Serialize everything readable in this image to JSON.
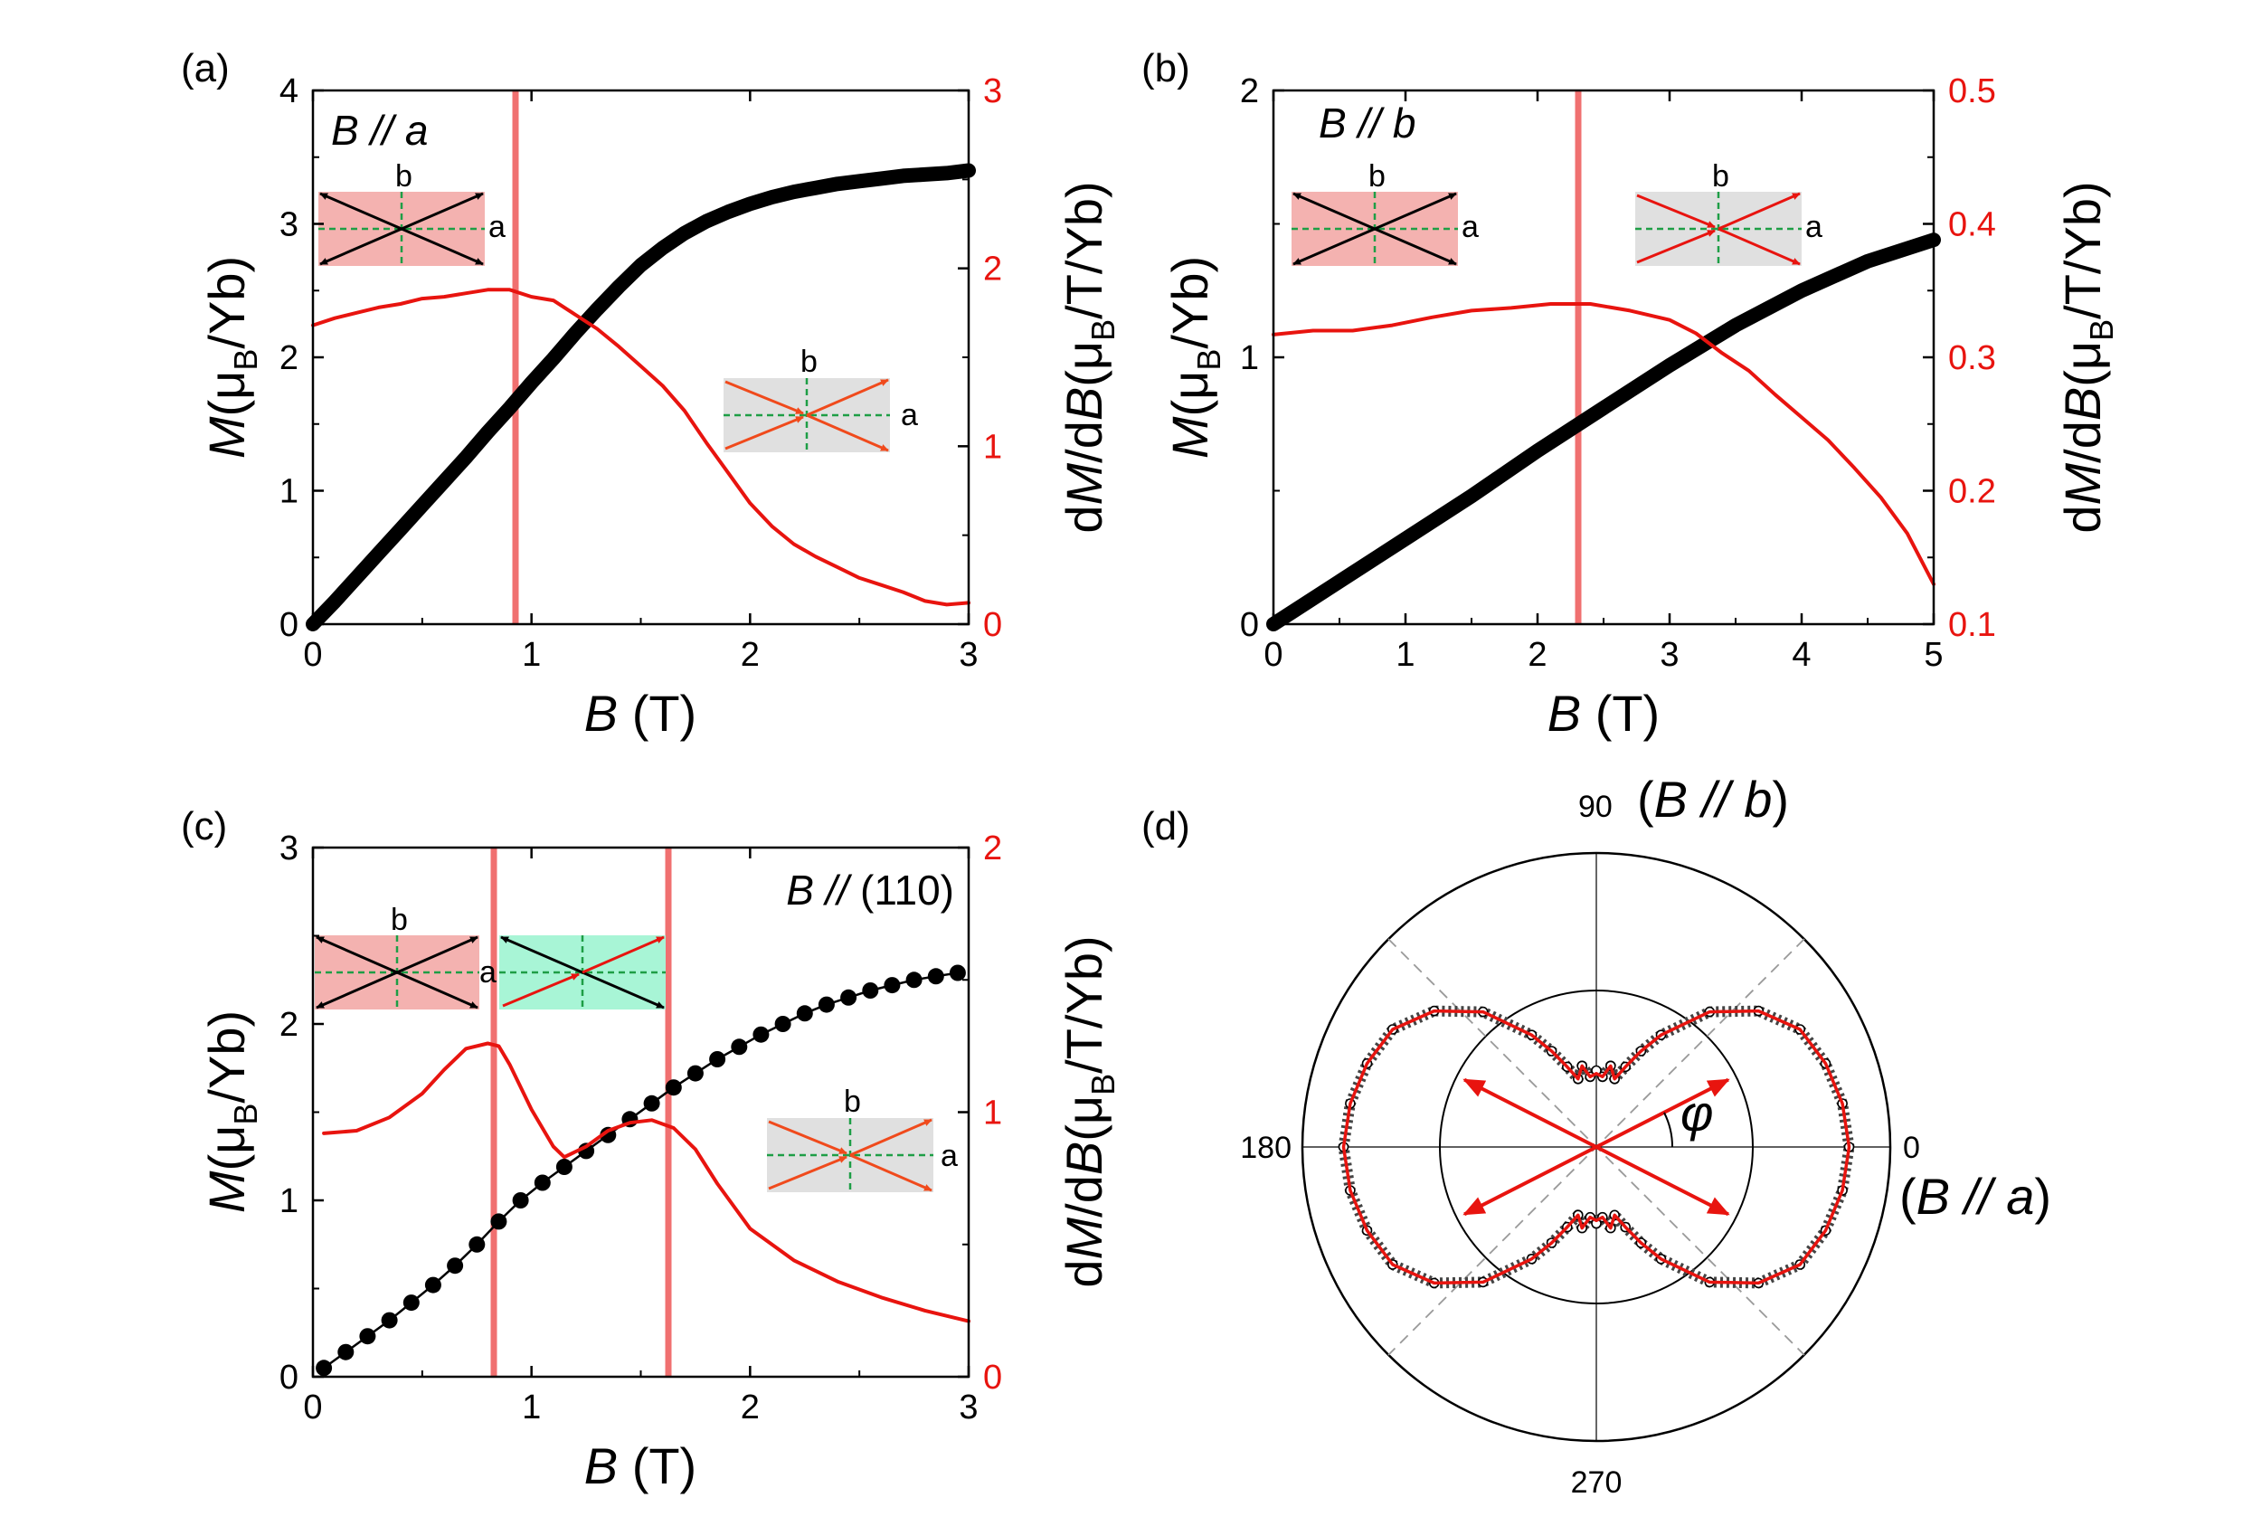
{
  "colors": {
    "black": "#000000",
    "red": "#e8140f",
    "marker_line": "#f07070",
    "inset_pink": "#f4b2b0",
    "inset_grey": "#e0e0e0",
    "inset_green": "#a8f5d6",
    "inset_dash": "#1e9e46",
    "orange_arrow": "#f04a1c"
  },
  "chart_data": [
    {
      "panel_label": "(a)",
      "type": "line",
      "condition": {
        "prefix": "B",
        "sep": " // ",
        "axis": "a"
      },
      "xlabel": {
        "symbol": "B",
        "unit": "(T)"
      },
      "ylabel_left": {
        "symbol": "M",
        "unit_open": "(μ",
        "unit_sub": "B",
        "unit_close": "/Yb)"
      },
      "ylabel_right": {
        "prefix": "d",
        "symbol": "M",
        "mid": "/d",
        "symbol2": "B",
        "unit_open": "(μ",
        "unit_sub": "B",
        "unit_close": "/T/Yb)"
      },
      "xlim": [
        0,
        3
      ],
      "ylim_left": [
        0,
        4
      ],
      "ylim_right": [
        0,
        3
      ],
      "xticks": [
        "0",
        "1",
        "2",
        "3"
      ],
      "yticks_left": [
        "0",
        "1",
        "2",
        "3",
        "4"
      ],
      "yticks_right": [
        "0",
        "1",
        "2",
        "3"
      ],
      "marker_x": [
        0.92
      ],
      "inset_labels": {
        "b": "b",
        "a": "a"
      },
      "series": [
        {
          "name": "M",
          "axis": "left",
          "style": "thick",
          "x": [
            0,
            0.1,
            0.2,
            0.3,
            0.4,
            0.5,
            0.6,
            0.7,
            0.8,
            0.9,
            1.0,
            1.1,
            1.2,
            1.3,
            1.4,
            1.5,
            1.6,
            1.7,
            1.8,
            1.9,
            2.0,
            2.1,
            2.2,
            2.3,
            2.4,
            2.5,
            2.6,
            2.7,
            2.8,
            2.9,
            3.0
          ],
          "y": [
            0,
            0.17,
            0.35,
            0.53,
            0.71,
            0.89,
            1.07,
            1.25,
            1.44,
            1.62,
            1.81,
            1.99,
            2.18,
            2.36,
            2.53,
            2.69,
            2.82,
            2.93,
            3.02,
            3.09,
            3.15,
            3.2,
            3.24,
            3.27,
            3.3,
            3.32,
            3.34,
            3.36,
            3.37,
            3.38,
            3.4
          ]
        },
        {
          "name": "dM/dB",
          "axis": "right",
          "style": "line",
          "x": [
            0,
            0.1,
            0.2,
            0.3,
            0.4,
            0.5,
            0.6,
            0.7,
            0.8,
            0.9,
            1.0,
            1.1,
            1.2,
            1.3,
            1.4,
            1.5,
            1.6,
            1.7,
            1.8,
            1.9,
            2.0,
            2.1,
            2.2,
            2.3,
            2.4,
            2.5,
            2.6,
            2.7,
            2.8,
            2.9,
            3.0
          ],
          "y": [
            1.68,
            1.72,
            1.75,
            1.78,
            1.8,
            1.83,
            1.84,
            1.86,
            1.88,
            1.88,
            1.84,
            1.82,
            1.74,
            1.66,
            1.56,
            1.45,
            1.34,
            1.2,
            1.02,
            0.85,
            0.68,
            0.55,
            0.45,
            0.38,
            0.32,
            0.26,
            0.22,
            0.18,
            0.13,
            0.11,
            0.12
          ]
        }
      ]
    },
    {
      "panel_label": "(b)",
      "type": "line",
      "condition": {
        "prefix": "B",
        "sep": " // ",
        "axis": "b"
      },
      "xlabel": {
        "symbol": "B",
        "unit": "(T)"
      },
      "ylabel_left": {
        "symbol": "M",
        "unit_open": "(μ",
        "unit_sub": "B",
        "unit_close": "/Yb)"
      },
      "ylabel_right": {
        "prefix": "d",
        "symbol": "M",
        "mid": "/d",
        "symbol2": "B",
        "unit_open": "(μ",
        "unit_sub": "B",
        "unit_close": "/T/Yb)"
      },
      "xlim": [
        0,
        5
      ],
      "ylim_left": [
        0,
        2
      ],
      "ylim_right": [
        0.1,
        0.5
      ],
      "xticks": [
        "0",
        "1",
        "2",
        "3",
        "4",
        "5"
      ],
      "yticks_left": [
        "0",
        "1",
        "2"
      ],
      "yticks_right": [
        "0.1",
        "0.2",
        "0.3",
        "0.4",
        "0.5"
      ],
      "marker_x": [
        2.27
      ],
      "inset_labels": {
        "b": "b",
        "a": "a"
      },
      "series": [
        {
          "name": "M",
          "axis": "left",
          "style": "thick",
          "x": [
            0,
            0.5,
            1.0,
            1.5,
            2.0,
            2.5,
            3.0,
            3.5,
            4.0,
            4.5,
            5.0
          ],
          "y": [
            0,
            0.16,
            0.32,
            0.48,
            0.65,
            0.81,
            0.97,
            1.12,
            1.25,
            1.36,
            1.44
          ]
        },
        {
          "name": "dM/dB",
          "axis": "right",
          "style": "line",
          "x": [
            0,
            0.3,
            0.6,
            0.9,
            1.2,
            1.5,
            1.8,
            2.1,
            2.4,
            2.7,
            3.0,
            3.2,
            3.4,
            3.6,
            3.8,
            4.0,
            4.2,
            4.4,
            4.6,
            4.8,
            5.0
          ],
          "y": [
            0.317,
            0.32,
            0.32,
            0.324,
            0.33,
            0.335,
            0.337,
            0.34,
            0.34,
            0.335,
            0.328,
            0.318,
            0.303,
            0.29,
            0.272,
            0.255,
            0.238,
            0.217,
            0.195,
            0.168,
            0.13
          ]
        }
      ]
    },
    {
      "panel_label": "(c)",
      "type": "line",
      "condition": {
        "prefix": "B",
        "sep": " // ",
        "axis": "(110)"
      },
      "xlabel": {
        "symbol": "B",
        "unit": "(T)"
      },
      "ylabel_left": {
        "symbol": "M",
        "unit_open": "(μ",
        "unit_sub": "B",
        "unit_close": "/Yb)"
      },
      "ylabel_right": {
        "prefix": "d",
        "symbol": "M",
        "mid": "/d",
        "symbol2": "B",
        "unit_open": "(μ",
        "unit_sub": "B",
        "unit_close": "/T/Yb)"
      },
      "xlim": [
        0,
        3
      ],
      "ylim_left": [
        0,
        3
      ],
      "ylim_right": [
        0,
        2
      ],
      "xticks": [
        "0",
        "1",
        "2",
        "3"
      ],
      "yticks_left": [
        "0",
        "1",
        "2",
        "3"
      ],
      "yticks_right": [
        "0",
        "1",
        "2"
      ],
      "marker_x": [
        0.83,
        1.63
      ],
      "inset_labels": {
        "b": "b",
        "a": "a"
      },
      "series": [
        {
          "name": "M",
          "axis": "left",
          "style": "dots",
          "x": [
            0.05,
            0.15,
            0.25,
            0.35,
            0.45,
            0.55,
            0.65,
            0.75,
            0.85,
            0.95,
            1.05,
            1.15,
            1.25,
            1.35,
            1.45,
            1.55,
            1.65,
            1.75,
            1.85,
            1.95,
            2.05,
            2.15,
            2.25,
            2.35,
            2.45,
            2.55,
            2.65,
            2.75,
            2.85,
            2.95
          ],
          "y": [
            0.05,
            0.14,
            0.23,
            0.32,
            0.42,
            0.52,
            0.63,
            0.75,
            0.88,
            1.0,
            1.1,
            1.19,
            1.28,
            1.37,
            1.46,
            1.55,
            1.64,
            1.72,
            1.8,
            1.87,
            1.94,
            2.0,
            2.06,
            2.11,
            2.15,
            2.19,
            2.22,
            2.25,
            2.27,
            2.29
          ]
        },
        {
          "name": "dM/dB",
          "axis": "right",
          "style": "line",
          "x": [
            0.05,
            0.2,
            0.35,
            0.5,
            0.6,
            0.7,
            0.8,
            0.85,
            0.9,
            1.0,
            1.1,
            1.15,
            1.25,
            1.35,
            1.45,
            1.55,
            1.65,
            1.75,
            1.85,
            2.0,
            2.2,
            2.4,
            2.6,
            2.8,
            3.0
          ],
          "y": [
            0.92,
            0.93,
            0.98,
            1.07,
            1.16,
            1.24,
            1.26,
            1.25,
            1.18,
            1.01,
            0.87,
            0.83,
            0.87,
            0.93,
            0.96,
            0.97,
            0.94,
            0.86,
            0.73,
            0.56,
            0.44,
            0.36,
            0.3,
            0.25,
            0.21
          ]
        }
      ]
    },
    {
      "panel_label": "(d)",
      "type": "polar",
      "angle_labels": {
        "deg90": "90",
        "deg180": "180",
        "deg0": "0",
        "deg270": "270"
      },
      "axis_note_top": {
        "open": "(",
        "symbol": "B",
        "sep": " // ",
        "axis": "b",
        "close": ")"
      },
      "axis_note_right": {
        "open": "(",
        "symbol": "B",
        "sep": " // ",
        "axis": "a",
        "close": ")"
      },
      "angle_symbol": "φ",
      "radial_range": [
        0,
        1
      ],
      "reference_circle_r": 0.48,
      "moment_arrow_angles_deg": [
        27,
        153,
        207,
        333
      ],
      "series": [
        {
          "name": "data",
          "style": "open_circles",
          "angle_deg": [
            0,
            10,
            20,
            30,
            40,
            50,
            60,
            65,
            70,
            75,
            80,
            85,
            90
          ],
          "r": [
            0.86,
            0.85,
            0.83,
            0.8,
            0.72,
            0.6,
            0.44,
            0.36,
            0.29,
            0.24,
            0.28,
            0.24,
            0.26
          ]
        },
        {
          "name": "fit",
          "style": "line",
          "angle_deg": [
            0,
            10,
            20,
            30,
            40,
            50,
            60,
            65,
            70,
            75,
            80,
            85,
            90
          ],
          "r": [
            0.86,
            0.85,
            0.83,
            0.8,
            0.72,
            0.6,
            0.44,
            0.36,
            0.29,
            0.24,
            0.28,
            0.24,
            0.25
          ]
        }
      ]
    }
  ]
}
